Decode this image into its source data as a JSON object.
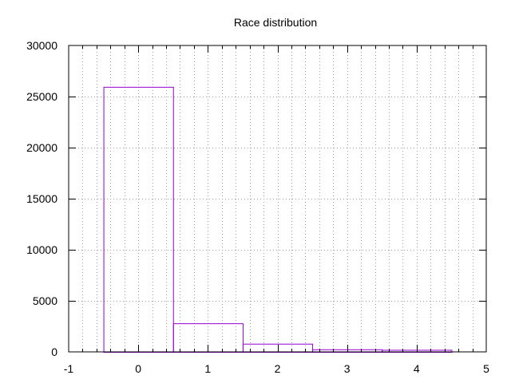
{
  "chart_data": {
    "type": "bar",
    "title": "Race distribution",
    "xlabel": "",
    "ylabel": "",
    "xlim": [
      -1,
      5
    ],
    "ylim": [
      0,
      30000
    ],
    "x_ticks": [
      "-1",
      "0",
      "1",
      "2",
      "3",
      "4",
      "5"
    ],
    "y_ticks": [
      "0",
      "5000",
      "10000",
      "15000",
      "20000",
      "25000",
      "30000"
    ],
    "bar_width": 1,
    "x": [
      0,
      1,
      2,
      3,
      4
    ],
    "values": [
      25950,
      2800,
      800,
      250,
      200
    ],
    "bar_color": "#9400d3",
    "grid": true
  }
}
